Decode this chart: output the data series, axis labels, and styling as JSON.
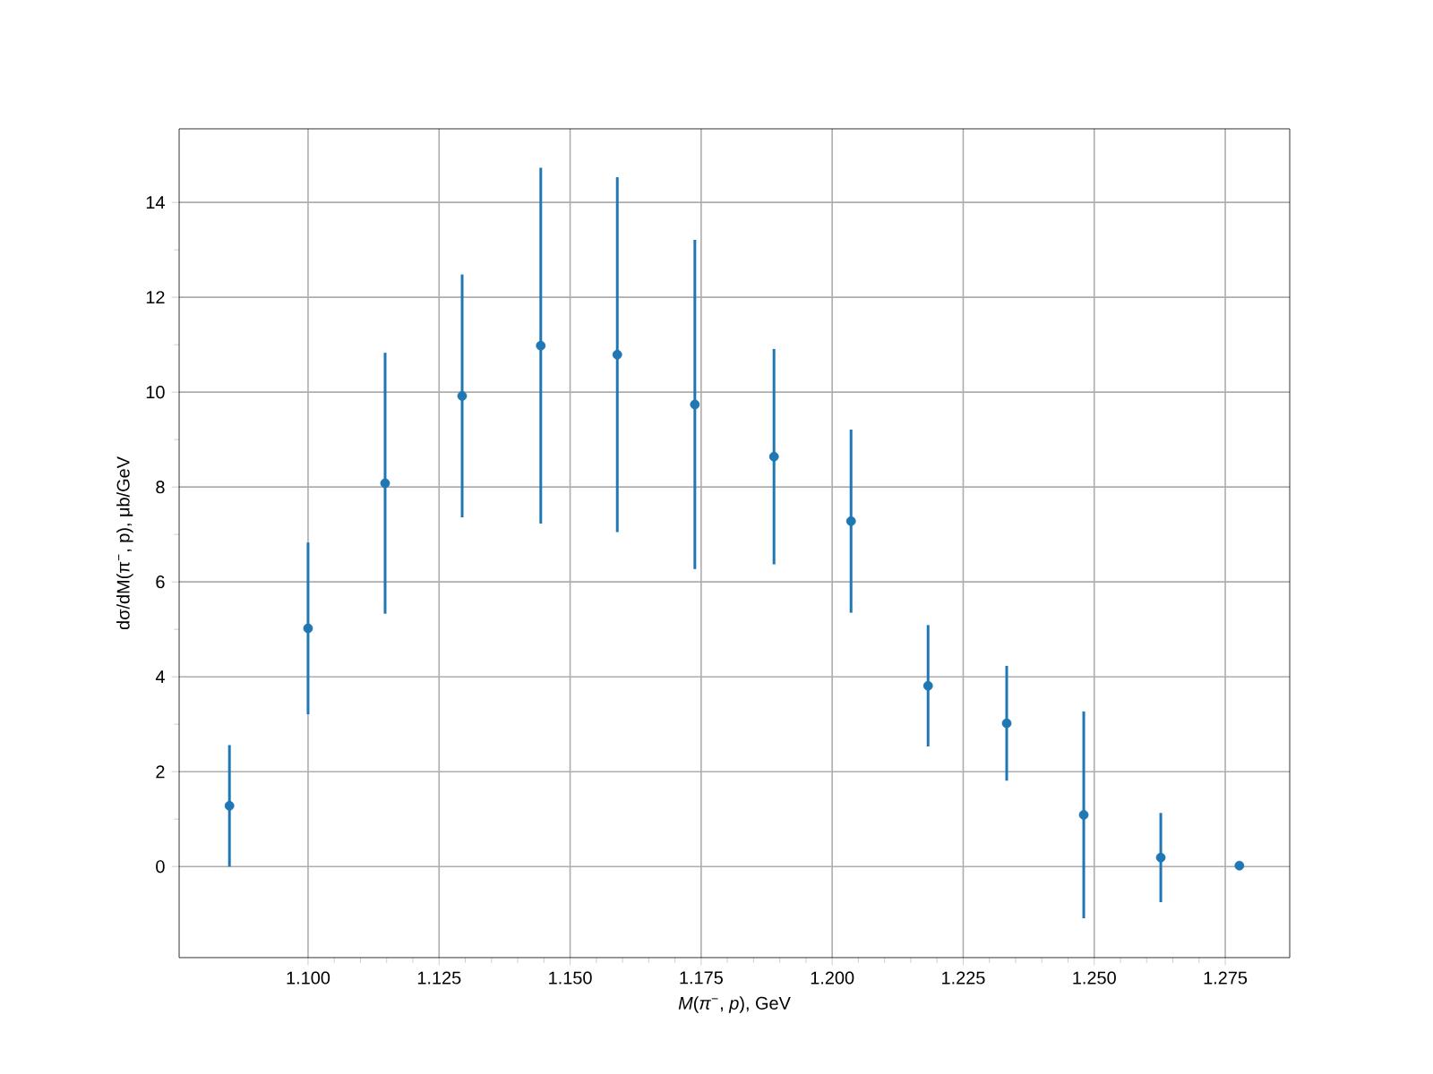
{
  "chart_data": {
    "type": "scatter",
    "xlabel": "*M*(*π*$^{−}$, *p*), GeV",
    "ylabel": "dσ/dM(π$^{−}$, p), μb/GeV",
    "x": [
      1.085,
      1.1,
      1.1147,
      1.1294,
      1.1444,
      1.159,
      1.1738,
      1.1889,
      1.2036,
      1.2183,
      1.2333,
      1.248,
      1.2627,
      1.2777
    ],
    "values": [
      1.28,
      5.02,
      8.08,
      9.92,
      10.98,
      10.79,
      9.74,
      8.64,
      7.28,
      3.81,
      3.02,
      1.09,
      0.19,
      0.02
    ],
    "errors": [
      1.28,
      1.81,
      2.75,
      2.56,
      3.75,
      3.74,
      3.47,
      2.27,
      1.93,
      1.28,
      1.21,
      2.18,
      0.94,
      null
    ],
    "color": "#1f77b4",
    "marker": "circle",
    "grid": true,
    "xlim": [
      1.0754,
      1.2873
    ],
    "ylim": [
      -1.92,
      15.55
    ],
    "xticks": [
      {
        "value": 1.1,
        "label": "1.100"
      },
      {
        "value": 1.125,
        "label": "1.125"
      },
      {
        "value": 1.15,
        "label": "1.150"
      },
      {
        "value": 1.175,
        "label": "1.175"
      },
      {
        "value": 1.2,
        "label": "1.200"
      },
      {
        "value": 1.225,
        "label": "1.225"
      },
      {
        "value": 1.25,
        "label": "1.250"
      },
      {
        "value": 1.275,
        "label": "1.275"
      }
    ],
    "yticks": [
      0,
      2,
      4,
      6,
      8,
      10,
      12,
      14
    ]
  }
}
